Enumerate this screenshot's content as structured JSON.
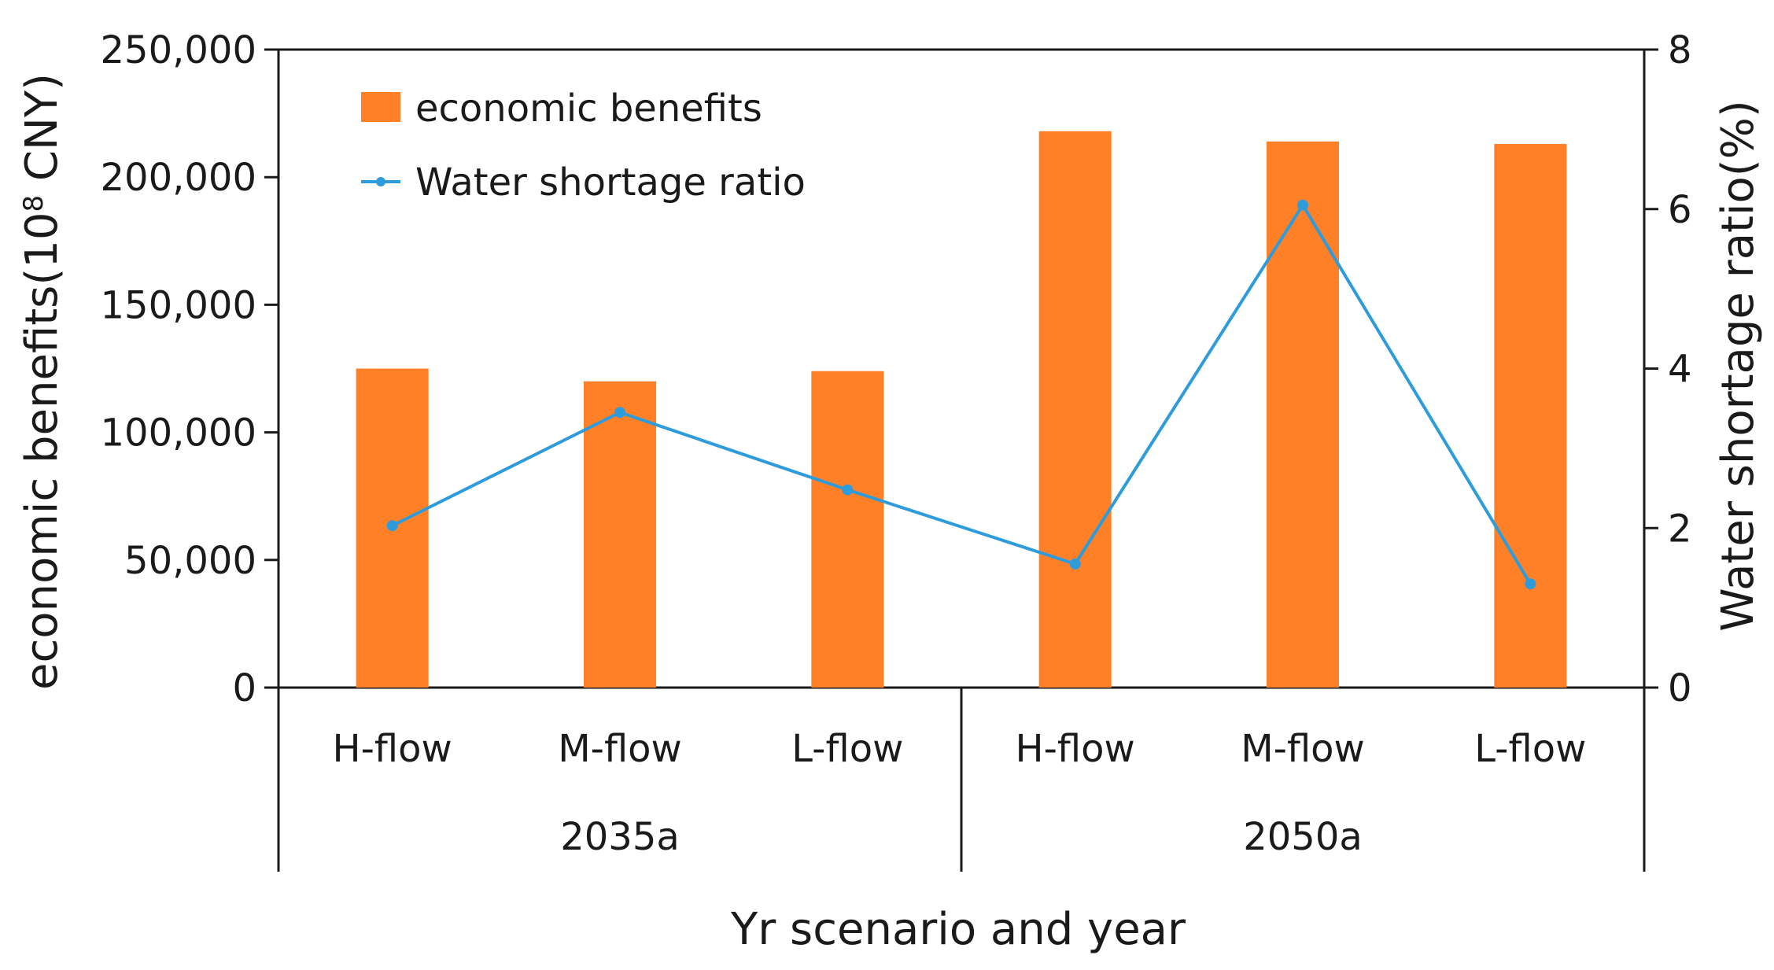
{
  "chart_data": {
    "type": "bar+line",
    "categories": [
      "H-flow",
      "M-flow",
      "L-flow",
      "H-flow",
      "M-flow",
      "L-flow"
    ],
    "groups": [
      {
        "label": "2035a",
        "count": 3
      },
      {
        "label": "2050a",
        "count": 3
      }
    ],
    "series": [
      {
        "name": "economic benefits",
        "kind": "bar",
        "axis": "left",
        "color": "#FF8027",
        "values": [
          125000,
          120000,
          124000,
          218000,
          214000,
          213000
        ]
      },
      {
        "name": "Water shortage ratio",
        "kind": "line",
        "axis": "right",
        "color": "#2E9CDB",
        "values": [
          2.03,
          3.45,
          2.48,
          1.55,
          6.05,
          1.3
        ]
      }
    ],
    "y_left": {
      "label_prefix": "economic benefits(10",
      "label_sup": "8",
      "label_suffix": " CNY)",
      "range": [
        0,
        250000
      ],
      "ticks": [
        0,
        50000,
        100000,
        150000,
        200000,
        250000
      ],
      "tick_labels": [
        "0",
        "50,000",
        "100,000",
        "150,000",
        "200,000",
        "250,000"
      ]
    },
    "y_right": {
      "label": "Water shortage ratio(%)",
      "range": [
        0,
        8
      ],
      "ticks": [
        0,
        2,
        4,
        6,
        8
      ],
      "tick_labels": [
        "0",
        "2",
        "4",
        "6",
        "8"
      ]
    },
    "xlabel": "Yr scenario and year",
    "legend": {
      "position": "top-left",
      "entries": [
        "economic benefits",
        "Water shortage ratio"
      ]
    },
    "grid": false
  }
}
